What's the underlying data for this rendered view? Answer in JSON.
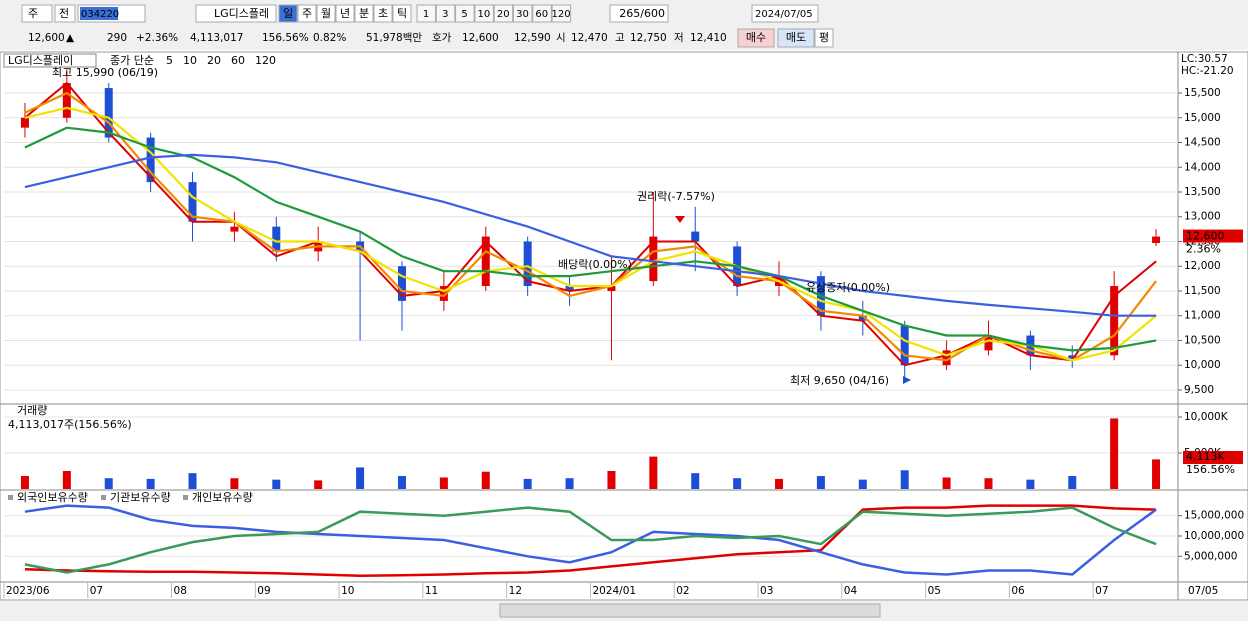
{
  "toolbar": {
    "period": "주",
    "range": "전",
    "code": "034220",
    "name": "LG디스플레",
    "intervals": [
      "일",
      "주",
      "월",
      "년",
      "분",
      "초",
      "틱"
    ],
    "steps": [
      "1",
      "3",
      "5",
      "10",
      "20",
      "30",
      "60",
      "120"
    ],
    "count": "265/600",
    "date": "2024/07/05"
  },
  "quote": {
    "price": "12,600",
    "change_sign": "▲",
    "change": "290",
    "change_pct": "+2.36%",
    "volume": "4,113,017",
    "volume_ratio": "156.56%",
    "turnover": "0.82%",
    "amount": "51,978백만",
    "ask_label": "호가",
    "ask": "12,600",
    "bid": "12,590",
    "open_label": "시",
    "open": "12,470",
    "high_label": "고",
    "high": "12,750",
    "low_label": "저",
    "low": "12,410",
    "buttons": [
      "매수",
      "매도",
      "평"
    ]
  },
  "chart_data": [
    {
      "type": "candlestick",
      "legend_title": "LG디스플레이",
      "indicator_label": "종가 단순",
      "open": [
        14800,
        15000,
        15600,
        14600,
        13700,
        12700,
        12800,
        12300,
        12500,
        12000,
        11300,
        11600,
        12500,
        11600,
        11500,
        11700,
        12700,
        12400,
        11600,
        11800,
        11000,
        10800,
        10000,
        10300,
        10600,
        10200,
        10200,
        12470
      ],
      "high": [
        15300,
        15990,
        15700,
        14700,
        13900,
        13100,
        13000,
        12800,
        12700,
        12100,
        11900,
        12800,
        12600,
        11800,
        12200,
        13500,
        13200,
        12500,
        12100,
        11900,
        11300,
        10900,
        10500,
        10900,
        10700,
        10400,
        11900,
        12750
      ],
      "low": [
        14600,
        14900,
        14500,
        13500,
        12500,
        12500,
        12100,
        12100,
        10500,
        10700,
        11100,
        11500,
        11400,
        11200,
        10100,
        11600,
        11900,
        11400,
        11400,
        10700,
        10600,
        9650,
        9900,
        10200,
        9900,
        9950,
        10100,
        12410
      ],
      "close": [
        15000,
        15700,
        14600,
        13700,
        12900,
        12800,
        12300,
        12500,
        12300,
        11300,
        11600,
        12600,
        11600,
        11500,
        11600,
        12600,
        12500,
        11600,
        11800,
        11000,
        10900,
        10000,
        10300,
        10600,
        10200,
        10100,
        11600,
        12600
      ],
      "up_color": "#e00000",
      "down_color": "#1c4fd6",
      "series": [
        {
          "name": "5",
          "color": "#e00000",
          "values": [
            15000,
            15700,
            14700,
            13800,
            12900,
            12900,
            12200,
            12500,
            12300,
            11400,
            11500,
            12500,
            11700,
            11500,
            11600,
            12500,
            12500,
            11600,
            11800,
            11000,
            10900,
            10000,
            10200,
            10600,
            10200,
            10100,
            11400,
            12100
          ]
        },
        {
          "name": "10",
          "color": "#f08a00",
          "values": [
            15100,
            15500,
            14900,
            13900,
            13000,
            12900,
            12300,
            12400,
            12400,
            11500,
            11400,
            12300,
            11900,
            11400,
            11600,
            12300,
            12400,
            11800,
            11700,
            11100,
            11000,
            10200,
            10100,
            10600,
            10300,
            10100,
            10600,
            11700
          ]
        },
        {
          "name": "20",
          "color": "#f2e200",
          "values": [
            15000,
            15200,
            15000,
            14300,
            13400,
            12900,
            12500,
            12500,
            12300,
            11800,
            11500,
            11900,
            12000,
            11600,
            11600,
            12100,
            12300,
            12000,
            11700,
            11300,
            11100,
            10500,
            10200,
            10500,
            10400,
            10100,
            10300,
            11000
          ]
        },
        {
          "name": "60",
          "color": "#1e9a3c",
          "values": [
            14400,
            14800,
            14700,
            14400,
            14200,
            13800,
            13300,
            13000,
            12700,
            12200,
            11900,
            11900,
            11800,
            11800,
            11900,
            12000,
            12100,
            12000,
            11800,
            11400,
            11100,
            10800,
            10600,
            10600,
            10400,
            10300,
            10350,
            10500
          ]
        },
        {
          "name": "120",
          "color": "#3b5fe0",
          "values": [
            13600,
            13800,
            14000,
            14200,
            14250,
            14200,
            14100,
            13900,
            13700,
            13500,
            13300,
            13050,
            12800,
            12500,
            12200,
            12100,
            12000,
            11900,
            11800,
            11650,
            11500,
            11400,
            11300,
            11220,
            11150,
            11080,
            11000,
            11000
          ]
        }
      ],
      "ylim": [
        9237,
        16268
      ],
      "yticks": [
        {
          "value": 9500,
          "label": "9,500"
        },
        {
          "value": 10000,
          "label": "10,000"
        },
        {
          "value": 10500,
          "label": "10,500"
        },
        {
          "value": 11000,
          "label": "11,000"
        },
        {
          "value": 11500,
          "label": "11,500"
        },
        {
          "value": 12000,
          "label": "12,000"
        },
        {
          "value": 12500,
          "label": "12,500"
        },
        {
          "value": 13000,
          "label": "13,000"
        },
        {
          "value": 13500,
          "label": "13,500"
        },
        {
          "value": 14000,
          "label": "14,000"
        },
        {
          "value": 14500,
          "label": "14,500"
        },
        {
          "value": 15000,
          "label": "15,000"
        },
        {
          "value": 15500,
          "label": "15,500"
        }
      ],
      "annotations": [
        "최고 15,990 (06/19)",
        "권리락(-7.57%)",
        "배당락(0.00%)",
        "유상증자(0.00%)",
        "최저 9,650 (04/16)"
      ],
      "right_labels": [
        "LC:30.57",
        "HC:-21.20"
      ],
      "last_labels": [
        "12,600",
        "2.36%"
      ]
    },
    {
      "type": "bar",
      "title": "거래량",
      "subtitle": "4,113,017주(156.56%)",
      "values": [
        1800,
        2500,
        1500,
        1400,
        2200,
        1500,
        1300,
        1200,
        3000,
        1800,
        1600,
        2400,
        1400,
        1500,
        2500,
        4500,
        2200,
        1500,
        1400,
        1800,
        1300,
        2600,
        1600,
        1500,
        1300,
        1800,
        9800,
        4113
      ],
      "ylim": [
        0,
        11667
      ],
      "yticks": [
        {
          "value": 5000,
          "label": "5,000K"
        },
        {
          "value": 10000,
          "label": "10,000K"
        }
      ],
      "last_labels": [
        "4,113K",
        "156.56%"
      ]
    },
    {
      "type": "line",
      "categories": [
        "2023/06",
        null,
        "07",
        null,
        "08",
        null,
        "09",
        null,
        "10",
        null,
        "11",
        null,
        "12",
        null,
        "2024/01",
        null,
        "02",
        null,
        "03",
        null,
        "04",
        null,
        "05",
        null,
        "06",
        null,
        "07",
        null
      ],
      "x_end_label": "07/05",
      "series": [
        {
          "name": "외국인보유수량",
          "color": "#e00000",
          "values": [
            1800000,
            1500000,
            1300000,
            1200000,
            1200000,
            1000000,
            800000,
            500000,
            200000,
            300000,
            500000,
            800000,
            1000000,
            1500000,
            2500000,
            3500000,
            4500000,
            5500000,
            6000000,
            6500000,
            16500000,
            17000000,
            17000000,
            17500000,
            17500000,
            17500000,
            16800000,
            16500000
          ]
        },
        {
          "name": "기관보유수량",
          "color": "#3b5fe0",
          "values": [
            16000000,
            17500000,
            17000000,
            14000000,
            12500000,
            12000000,
            11000000,
            10500000,
            10000000,
            9500000,
            9000000,
            7000000,
            5000000,
            3500000,
            6000000,
            11000000,
            10500000,
            10000000,
            9000000,
            6000000,
            3000000,
            1000000,
            500000,
            1500000,
            1500000,
            500000,
            9000000,
            16500000
          ]
        },
        {
          "name": "개인보유수량",
          "color": "#3a9a5c",
          "values": [
            3000000,
            1000000,
            3000000,
            6000000,
            8500000,
            10000000,
            10500000,
            11000000,
            16000000,
            15500000,
            15000000,
            16000000,
            17000000,
            16000000,
            9000000,
            9000000,
            10000000,
            9500000,
            10000000,
            8000000,
            16000000,
            15500000,
            15000000,
            15500000,
            16000000,
            17000000,
            12000000,
            8000000
          ]
        }
      ],
      "ylim": [
        -1100000,
        20850000
      ],
      "yticks": [
        {
          "value": 5000000,
          "label": "5,000,000"
        },
        {
          "value": 10000000,
          "label": "10,000,000"
        },
        {
          "value": 15000000,
          "label": "15,000,000"
        }
      ]
    }
  ]
}
